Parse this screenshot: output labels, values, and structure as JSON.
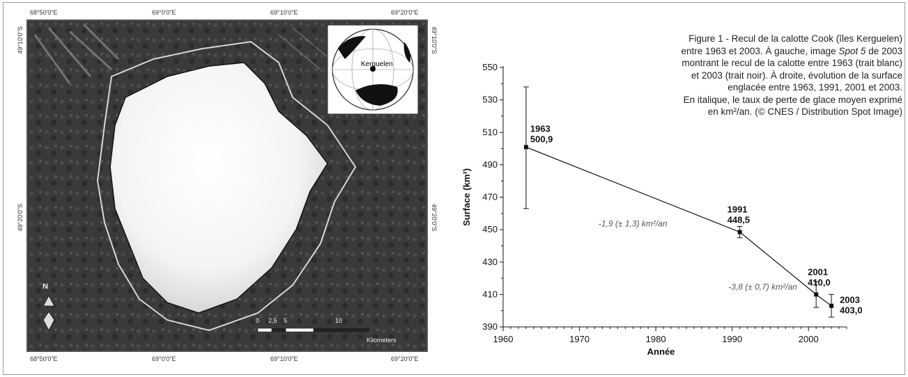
{
  "map": {
    "coords_top": [
      "68°50'0\"E",
      "69°0'0\"E",
      "69°10'0\"E",
      "69°20'0\"E"
    ],
    "coords_bottom": [
      "68°50'0\"E",
      "69°0'0\"E",
      "69°10'0\"E",
      "69°20'0\"E"
    ],
    "coords_left": [
      "49°10'0\"S",
      "49°20'0\"S"
    ],
    "coords_right": [
      "49°10'0\"S",
      "49°20'0\"S"
    ],
    "inset_label": "Kerguelen",
    "north_letter": "N",
    "scale_ticks": [
      "0",
      "2,5",
      "5",
      "10"
    ],
    "scale_unit": "Kilometers"
  },
  "caption": {
    "line1": "Figure 1  - Recul de la calotte Cook (îles Kerguelen)",
    "line2": "entre 1963 et 2003. À gauche, image ",
    "line2_italic": "Spot 5",
    "line2_end": " de 2003",
    "line3": "montrant le recul de la calotte entre 1963 (trait blanc)",
    "line4": "et 2003 (trait noir). À droite, évolution de la surface",
    "line5": "englacée entre 1963, 1991, 2001 et 2003.",
    "line6": "En italique, le taux de perte de glace moyen exprimé",
    "line7": "en km²/an. (© CNES / Distribution Spot Image)"
  },
  "chart_data": {
    "type": "line",
    "xlabel": "Année",
    "ylabel": "Surface (km²)",
    "xlim": [
      1960,
      2005
    ],
    "ylim": [
      390,
      550
    ],
    "x_ticks": [
      1960,
      1970,
      1980,
      1990,
      2000
    ],
    "y_ticks": [
      390,
      410,
      430,
      450,
      470,
      490,
      510,
      530,
      550
    ],
    "points": [
      {
        "x": 1963,
        "y": 500.9,
        "err_low": 463,
        "err_high": 538,
        "label_year": "1963",
        "label_value": "500,9"
      },
      {
        "x": 1991,
        "y": 448.5,
        "err_low": 445,
        "err_high": 452,
        "label_year": "1991",
        "label_value": "448,5"
      },
      {
        "x": 2001,
        "y": 410.0,
        "err_low": 402,
        "err_high": 418,
        "label_year": "2001",
        "label_value": "410,0"
      },
      {
        "x": 2003,
        "y": 403.0,
        "err_low": 396,
        "err_high": 410,
        "label_year": "2003",
        "label_value": "403,0"
      }
    ],
    "annotations": [
      {
        "text": "-1,9 (± 1,3) km²/an",
        "x": 1977,
        "y": 452
      },
      {
        "text": "-3,8 (± 0,7) km²/an",
        "x": 1994,
        "y": 413
      }
    ]
  }
}
